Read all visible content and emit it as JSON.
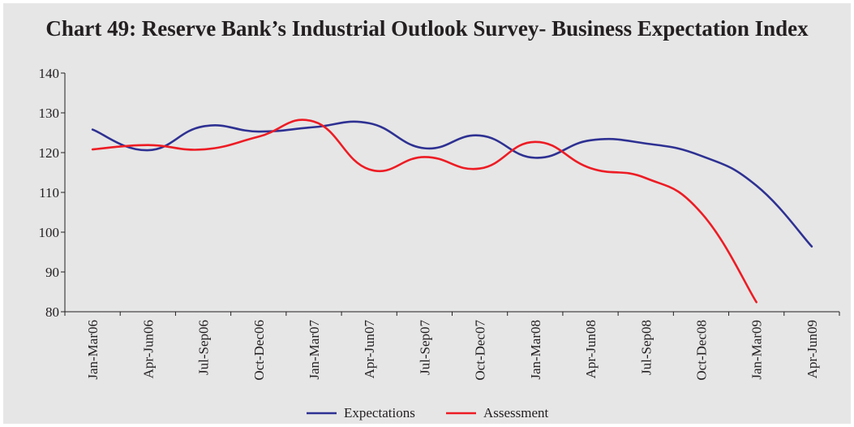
{
  "chart_data": {
    "type": "line",
    "title": "Chart 49: Reserve Bank’s Industrial Outlook Survey- Business Expectation Index",
    "xlabel": "",
    "ylabel": "",
    "ylim": [
      80,
      140
    ],
    "yticks": [
      80,
      90,
      100,
      110,
      120,
      130,
      140
    ],
    "grid": false,
    "legend_position": "bottom",
    "categories": [
      "Jan-Mar06",
      "Apr-Jun06",
      "Jul-Sep06",
      "Oct-Dec06",
      "Jan-Mar07",
      "Apr-Jun07",
      "Jul-Sep07",
      "Oct-Dec07",
      "Jan-Mar08",
      "Apr-Jun08",
      "Jul-Sep08",
      "Oct-Dec08",
      "Jan-Mar09",
      "Apr-Jun09"
    ],
    "series": [
      {
        "name": "Expectations",
        "color": "#2e3192",
        "values": [
          125.8,
          120.6,
          126.6,
          125.3,
          126.4,
          127.4,
          121.1,
          124.3,
          118.7,
          123.1,
          122.3,
          119.2,
          111.7,
          96.4
        ]
      },
      {
        "name": "Assessment",
        "color": "#ed1c24",
        "values": [
          120.8,
          121.9,
          120.8,
          124.0,
          127.8,
          115.8,
          118.9,
          116.0,
          122.7,
          116.1,
          113.6,
          104.9,
          82.4,
          null
        ]
      }
    ]
  }
}
